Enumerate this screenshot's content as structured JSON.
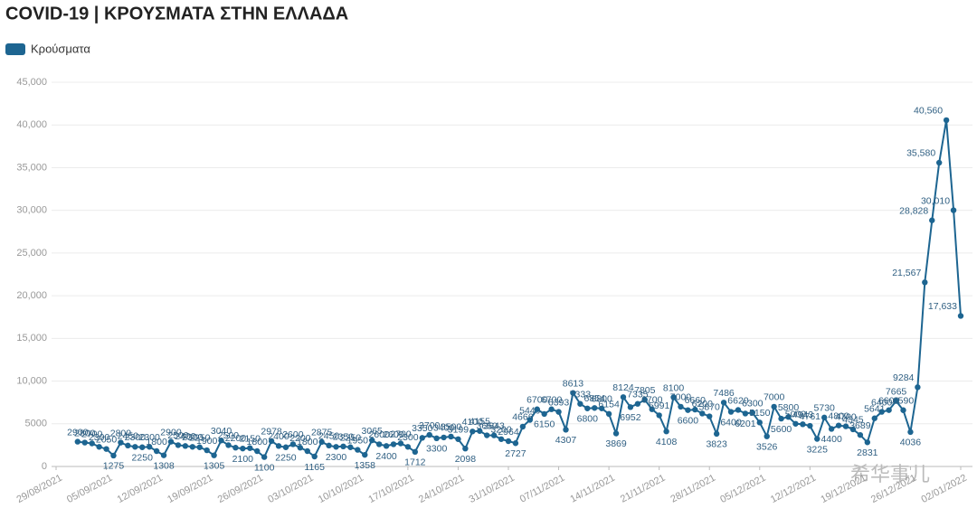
{
  "chart_data": {
    "type": "line",
    "title": "COVID-19 | ΚΡΟΥΣΜΑΤΑ ΣΤΗΝ ΕΛΛΑΔΑ",
    "watermark": "希华事儿",
    "legend": "top-left",
    "grid": true,
    "x": [
      "01/09/2021",
      "02/09/2021",
      "03/09/2021",
      "04/09/2021",
      "05/09/2021",
      "06/09/2021",
      "07/09/2021",
      "08/09/2021",
      "09/09/2021",
      "10/09/2021",
      "11/09/2021",
      "12/09/2021",
      "13/09/2021",
      "14/09/2021",
      "15/09/2021",
      "16/09/2021",
      "17/09/2021",
      "18/09/2021",
      "19/09/2021",
      "20/09/2021",
      "21/09/2021",
      "22/09/2021",
      "23/09/2021",
      "24/09/2021",
      "25/09/2021",
      "26/09/2021",
      "27/09/2021",
      "28/09/2021",
      "29/09/2021",
      "30/09/2021",
      "01/10/2021",
      "02/10/2021",
      "03/10/2021",
      "04/10/2021",
      "05/10/2021",
      "06/10/2021",
      "07/10/2021",
      "08/10/2021",
      "09/10/2021",
      "10/10/2021",
      "11/10/2021",
      "12/10/2021",
      "13/10/2021",
      "14/10/2021",
      "15/10/2021",
      "16/10/2021",
      "17/10/2021",
      "18/10/2021",
      "19/10/2021",
      "20/10/2021",
      "21/10/2021",
      "22/10/2021",
      "23/10/2021",
      "24/10/2021",
      "25/10/2021",
      "26/10/2021",
      "27/10/2021",
      "28/10/2021",
      "29/10/2021",
      "30/10/2021",
      "31/10/2021",
      "01/11/2021",
      "02/11/2021",
      "03/11/2021",
      "04/11/2021",
      "05/11/2021",
      "06/11/2021",
      "07/11/2021",
      "08/11/2021",
      "09/11/2021",
      "10/11/2021",
      "11/11/2021",
      "12/11/2021",
      "13/11/2021",
      "14/11/2021",
      "15/11/2021",
      "16/11/2021",
      "17/11/2021",
      "18/11/2021",
      "19/11/2021",
      "20/11/2021",
      "21/11/2021",
      "22/11/2021",
      "23/11/2021",
      "24/11/2021",
      "25/11/2021",
      "26/11/2021",
      "27/11/2021",
      "28/11/2021",
      "29/11/2021",
      "30/11/2021",
      "01/12/2021",
      "02/12/2021",
      "03/12/2021",
      "04/12/2021",
      "05/12/2021",
      "06/12/2021",
      "07/12/2021",
      "08/12/2021",
      "09/12/2021",
      "10/12/2021",
      "11/12/2021",
      "12/12/2021",
      "13/12/2021",
      "14/12/2021",
      "15/12/2021",
      "16/12/2021",
      "17/12/2021",
      "18/12/2021",
      "19/12/2021",
      "20/12/2021",
      "21/12/2021",
      "22/12/2021",
      "23/12/2021",
      "24/12/2021",
      "25/12/2021",
      "26/12/2021",
      "27/12/2021",
      "28/12/2021",
      "29/12/2021",
      "30/12/2021",
      "31/12/2021",
      "01/01/2022",
      "02/01/2022"
    ],
    "series": [
      {
        "name": "Κρούσματα",
        "color": "#1d6591",
        "values": [
          2900,
          2800,
          2700,
          2300,
          2050,
          1275,
          2800,
          2450,
          2300,
          2250,
          2300,
          1800,
          1308,
          2900,
          2500,
          2400,
          2300,
          2250,
          1900,
          1305,
          3040,
          2500,
          2200,
          2100,
          2150,
          1800,
          1100,
          2978,
          2400,
          2250,
          2600,
          2200,
          1800,
          1165,
          2875,
          2450,
          2300,
          2350,
          2250,
          1950,
          1358,
          3065,
          2600,
          2400,
          2600,
          2700,
          2300,
          1712,
          3350,
          3700,
          3300,
          3400,
          3500,
          3199,
          2098,
          4100,
          4155,
          3650,
          3643,
          3200,
          2964,
          2727,
          4666,
          5449,
          6700,
          6150,
          6700,
          6393,
          4307,
          8613,
          7333,
          6800,
          6854,
          6800,
          6154,
          3869,
          8124,
          6952,
          7335,
          7805,
          6700,
          5991,
          4108,
          8100,
          7000,
          6600,
          6660,
          6200,
          5870,
          3823,
          7486,
          6400,
          6620,
          6201,
          6300,
          5150,
          3526,
          7000,
          5600,
          5800,
          5000,
          4943,
          4761,
          3225,
          5730,
          4400,
          4800,
          4700,
          4345,
          3689,
          2831,
          5641,
          6400,
          6600,
          7665,
          6590,
          4036,
          9284,
          21567,
          28828,
          35580,
          40560,
          30010,
          17633
        ],
        "value_labels": [
          "2900",
          "2800",
          "2700",
          "2300",
          "2050",
          "1275",
          "2800",
          "2450",
          "2300",
          "2250",
          "2300",
          "1800",
          "1308",
          "2900",
          "2500",
          "2400",
          "2300",
          "2250",
          "1900",
          "1305",
          "3040",
          "2500",
          "2200",
          "2100",
          "2150",
          "1800",
          "1100",
          "2978",
          "2400",
          "2250",
          "2600",
          "2200",
          "1800",
          "1165",
          "2875",
          "2450",
          "2300",
          "2350",
          "2250",
          "1950",
          "1358",
          "3065",
          "2600",
          "2400",
          "2600",
          "2700",
          "2300",
          "1712",
          "3350",
          "3700",
          "3300",
          "3400",
          "3500",
          "3199",
          "2098",
          "4100",
          "4155",
          "3650",
          "3643",
          "3200",
          "2964",
          "2727",
          "4666",
          "5449",
          "6700",
          "6150",
          "6700",
          "6393",
          "4307",
          "8613",
          "7333",
          "6800",
          "6854",
          "6800",
          "6154",
          "3869",
          "8124",
          "6952",
          "7335",
          "7805",
          "6700",
          "5991",
          "4108",
          "8100",
          "7000",
          "6600",
          "6660",
          "6200",
          "5870",
          "3823",
          "7486",
          "6400",
          "6620",
          "6201",
          "6300",
          "5150",
          "3526",
          "7000",
          "5600",
          "5800",
          "5000",
          "4943",
          "4761",
          "3225",
          "5730",
          "4400",
          "4800",
          "4700",
          "4345",
          "3689",
          "2831",
          "5641",
          "6400",
          "6600",
          "7665",
          "6590",
          "4036",
          "9284",
          "21,567",
          "28,828",
          "35,580",
          "40,560",
          "30,010",
          "17,633"
        ]
      }
    ],
    "xlim": [
      "29/08/2021",
      "02/01/2022"
    ],
    "xticks": [
      "29/08/2021",
      "05/09/2021",
      "12/09/2021",
      "19/09/2021",
      "26/09/2021",
      "03/10/2021",
      "10/10/2021",
      "17/10/2021",
      "24/10/2021",
      "31/10/2021",
      "07/11/2021",
      "14/11/2021",
      "21/11/2021",
      "28/11/2021",
      "05/12/2021",
      "12/12/2021",
      "19/12/2021",
      "26/12/2021",
      "02/01/2022"
    ],
    "ylim": [
      0,
      45000
    ],
    "yticks": [
      0,
      5000,
      {
        "value": 10000,
        "label": "10,000"
      },
      {
        "value": 15000,
        "label": "15,000"
      },
      {
        "value": 20000,
        "label": "20,000"
      },
      {
        "value": 25000,
        "label": "25,000"
      },
      {
        "value": 30000,
        "label": "30,000"
      },
      {
        "value": 35000,
        "label": "35,000"
      },
      {
        "value": 40000,
        "label": "40,000"
      },
      {
        "value": 45000,
        "label": "45,000"
      }
    ]
  }
}
